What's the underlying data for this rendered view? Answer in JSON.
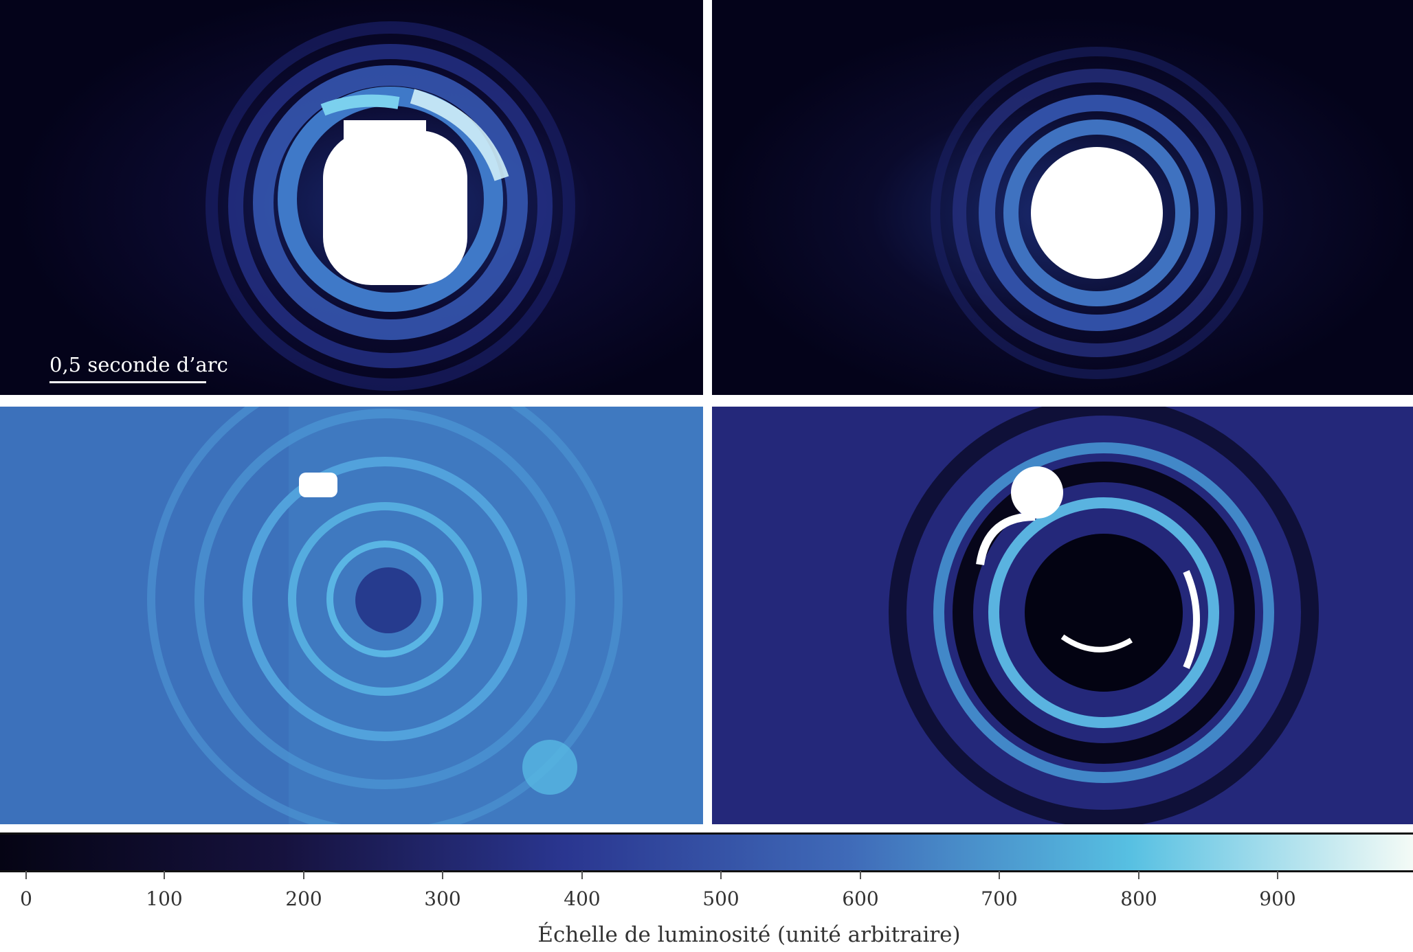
{
  "scale_bar": {
    "label": "0,5 seconde d’arc"
  },
  "colorbar": {
    "title": "Échelle de luminosité (unité arbitraire)",
    "ticks": [
      "0",
      "100",
      "200",
      "300",
      "400",
      "500",
      "600",
      "700",
      "800",
      "900"
    ],
    "range": [
      0,
      1000
    ],
    "colors": [
      "#050414",
      "#16123e",
      "#2a3690",
      "#3f6ab8",
      "#57c0e2",
      "#f4fbf6"
    ]
  },
  "panels": [
    {
      "name": "top-left-star-raw"
    },
    {
      "name": "top-right-star-reference"
    },
    {
      "name": "bottom-left-residual-ratio"
    },
    {
      "name": "bottom-right-residual-subtracted"
    }
  ]
}
